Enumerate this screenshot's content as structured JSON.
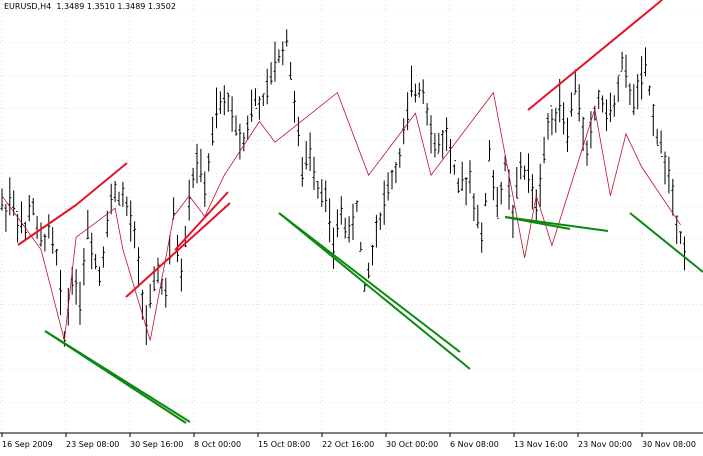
{
  "window": {
    "symbol": "EURUSD,H4",
    "ohlc": "1.3489 1.3510 1.3489 1.3502"
  },
  "chart_data": {
    "type": "candlestick-bars",
    "symbol": "EURUSD",
    "timeframe": "H4",
    "x_tick_labels": [
      "16 Sep 2009",
      "23 Sep 08:00",
      "30 Sep 16:00",
      "8 Oct 00:00",
      "15 Oct 08:00",
      "22 Oct 16:00",
      "30 Oct 00:00",
      "6 Nov 08:00",
      "13 Nov 16:00",
      "23 Nov 00:00",
      "30 Nov 08:00"
    ],
    "grid": true,
    "colors": {
      "bars": "#000000",
      "resistance": "#e8112a",
      "support": "#0b8a12",
      "zigzag": "#c0102a",
      "grid": "#c8c8c8",
      "axis": "#000000"
    },
    "pivots": [
      {
        "t": 0,
        "p": 0.53
      },
      {
        "t": 0.5,
        "p": 0.5
      },
      {
        "t": 2,
        "p": 0.55
      },
      {
        "t": 4,
        "p": 0.5
      },
      {
        "t": 6,
        "p": 0.46
      },
      {
        "t": 7.5,
        "p": 0.55
      },
      {
        "t": 9.5,
        "p": 0.43
      },
      {
        "t": 12,
        "p": 0.47
      },
      {
        "t": 14,
        "p": 0.4
      },
      {
        "t": 16,
        "p": 0.21
      },
      {
        "t": 18,
        "p": 0.36
      },
      {
        "t": 20,
        "p": 0.3
      },
      {
        "t": 22,
        "p": 0.47
      },
      {
        "t": 25,
        "p": 0.36
      },
      {
        "t": 27.5,
        "p": 0.52
      },
      {
        "t": 29,
        "p": 0.56
      },
      {
        "t": 31,
        "p": 0.55
      },
      {
        "t": 34,
        "p": 0.45
      },
      {
        "t": 37,
        "p": 0.24
      },
      {
        "t": 40,
        "p": 0.37
      },
      {
        "t": 42,
        "p": 0.31
      },
      {
        "t": 44,
        "p": 0.5
      },
      {
        "t": 46,
        "p": 0.36
      },
      {
        "t": 48,
        "p": 0.55
      },
      {
        "t": 50,
        "p": 0.64
      },
      {
        "t": 52,
        "p": 0.57
      },
      {
        "t": 55,
        "p": 0.75
      },
      {
        "t": 58,
        "p": 0.79
      },
      {
        "t": 60,
        "p": 0.71
      },
      {
        "t": 62,
        "p": 0.69
      },
      {
        "t": 64.5,
        "p": 0.78
      },
      {
        "t": 67,
        "p": 0.77
      },
      {
        "t": 70,
        "p": 0.87
      },
      {
        "t": 73,
        "p": 0.93
      },
      {
        "t": 75,
        "p": 0.78
      },
      {
        "t": 77,
        "p": 0.6
      },
      {
        "t": 79,
        "p": 0.66
      },
      {
        "t": 81,
        "p": 0.58
      },
      {
        "t": 83,
        "p": 0.55
      },
      {
        "t": 85,
        "p": 0.42
      },
      {
        "t": 87,
        "p": 0.52
      },
      {
        "t": 89,
        "p": 0.45
      },
      {
        "t": 91,
        "p": 0.53
      },
      {
        "t": 93,
        "p": 0.32
      },
      {
        "t": 96,
        "p": 0.47
      },
      {
        "t": 99,
        "p": 0.57
      },
      {
        "t": 102,
        "p": 0.64
      },
      {
        "t": 105,
        "p": 0.8
      },
      {
        "t": 108,
        "p": 0.82
      },
      {
        "t": 111,
        "p": 0.66
      },
      {
        "t": 114,
        "p": 0.7
      },
      {
        "t": 117,
        "p": 0.56
      },
      {
        "t": 120,
        "p": 0.6
      },
      {
        "t": 123,
        "p": 0.44
      },
      {
        "t": 125,
        "p": 0.65
      },
      {
        "t": 127,
        "p": 0.52
      },
      {
        "t": 129,
        "p": 0.62
      },
      {
        "t": 131,
        "p": 0.5
      },
      {
        "t": 133,
        "p": 0.62
      },
      {
        "t": 135,
        "p": 0.6
      },
      {
        "t": 137,
        "p": 0.52
      },
      {
        "t": 140,
        "p": 0.72
      },
      {
        "t": 143,
        "p": 0.78
      },
      {
        "t": 145,
        "p": 0.7
      },
      {
        "t": 147,
        "p": 0.82
      },
      {
        "t": 150,
        "p": 0.66
      },
      {
        "t": 153,
        "p": 0.79
      },
      {
        "t": 156,
        "p": 0.74
      },
      {
        "t": 159,
        "p": 0.86
      },
      {
        "t": 162,
        "p": 0.78
      },
      {
        "t": 165,
        "p": 0.85
      },
      {
        "t": 168,
        "p": 0.7
      },
      {
        "t": 171,
        "p": 0.6
      },
      {
        "t": 173,
        "p": 0.5
      },
      {
        "t": 175,
        "p": 0.42
      }
    ]
  }
}
